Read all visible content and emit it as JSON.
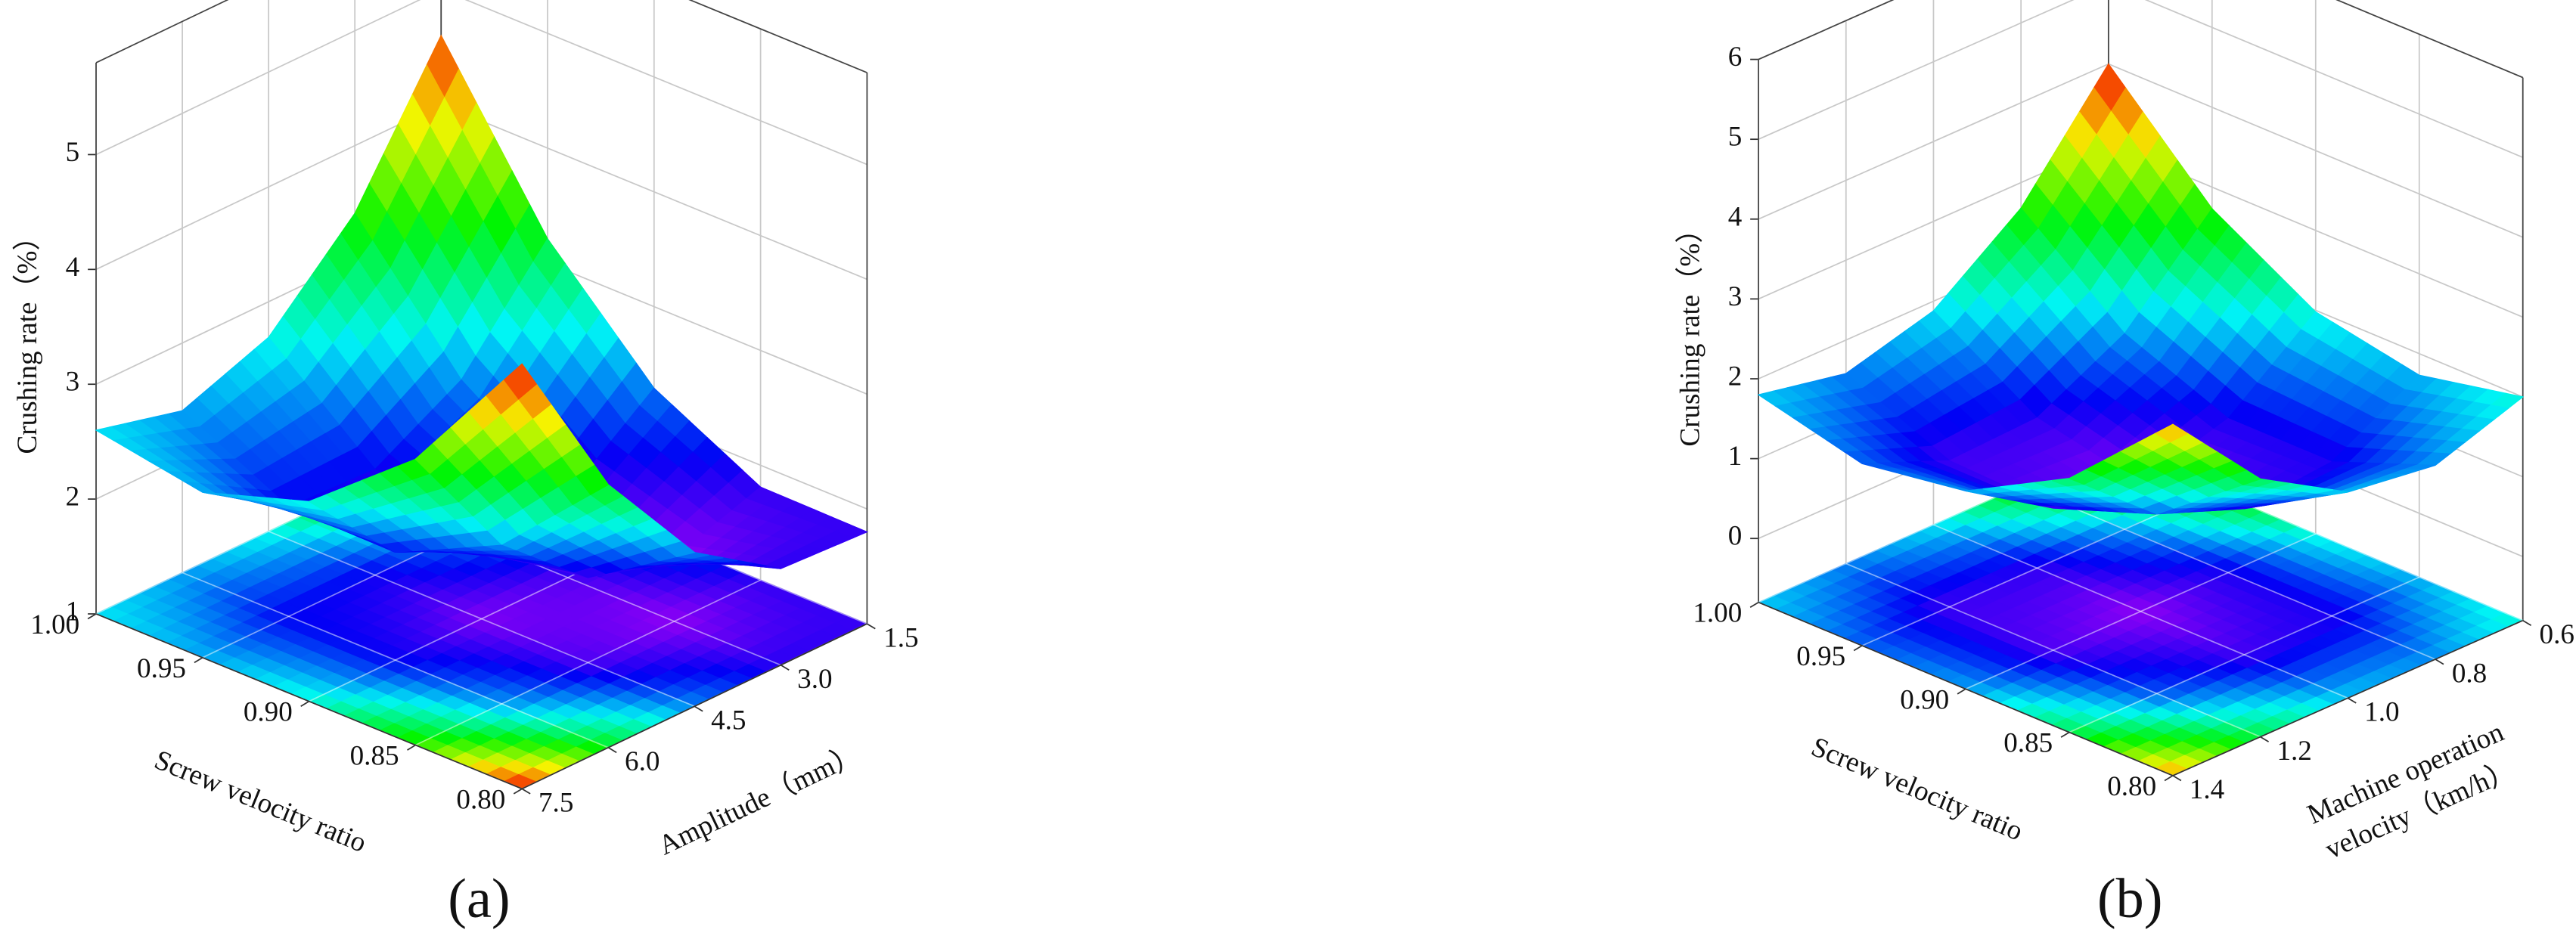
{
  "chart_data": [
    {
      "type": "surface",
      "panel_label": "(a)",
      "xlabel": "Screw velocity ratio",
      "ylabel": "Amplitude（mm）",
      "zlabel": "Crushing rate（%）",
      "xlim": [
        0.8,
        1.0
      ],
      "ylim": [
        1.5,
        7.5
      ],
      "zlim": [
        1,
        5.8
      ],
      "xticks": [
        {
          "value": 1,
          "label": "1.00"
        },
        0.95,
        {
          "value": 0.9,
          "label": "0.90"
        },
        0.85,
        {
          "value": 0.8,
          "label": "0.80"
        }
      ],
      "yticks": [
        1.5,
        {
          "value": 3,
          "label": "3.0"
        },
        4.5,
        {
          "value": 6,
          "label": "6.0"
        },
        7.5
      ],
      "zticks": [
        1,
        2,
        3,
        4,
        5
      ],
      "z": [
        [
          4.6,
          3.41,
          2.69,
          2.41,
          2.6
        ],
        [
          3.21,
          2.34,
          1.92,
          1.95,
          2.44
        ],
        [
          2.29,
          1.72,
          1.6,
          1.94,
          2.74
        ],
        [
          1.81,
          1.55,
          1.74,
          2.39,
          3.49
        ],
        [
          1.8,
          1.84,
          2.34,
          3.29,
          4.7
        ]
      ],
      "grid": true
    },
    {
      "type": "surface",
      "panel_label": "(b)",
      "xlabel": "Screw velocity ratio",
      "ylabel": [
        "Machine operation",
        "velocity（km/h）"
      ],
      "zlabel": "Crushing rate（%）",
      "xlim": [
        0.8,
        1.0
      ],
      "ylim": [
        0.6,
        1.4
      ],
      "zlim": [
        -0.8,
        6
      ],
      "xticks": [
        {
          "value": 1,
          "label": "1.00"
        },
        0.95,
        {
          "value": 0.9,
          "label": "0.90"
        },
        0.85,
        {
          "value": 0.8,
          "label": "0.80"
        }
      ],
      "yticks": [
        0.6,
        0.8,
        {
          "value": 1,
          "label": "1.0"
        },
        1.2,
        1.4
      ],
      "zticks": [
        0,
        1,
        2,
        3,
        4,
        5,
        6
      ],
      "z": [
        [
          4.0,
          2.68,
          1.88,
          1.58,
          1.8
        ],
        [
          2.73,
          1.65,
          1.08,
          1.03,
          1.48
        ],
        [
          1.98,
          1.13,
          0.8,
          0.98,
          1.68
        ],
        [
          1.73,
          1.13,
          1.03,
          1.45,
          2.38
        ],
        [
          2.0,
          1.63,
          1.78,
          2.43,
          3.6
        ]
      ],
      "grid": true
    }
  ]
}
